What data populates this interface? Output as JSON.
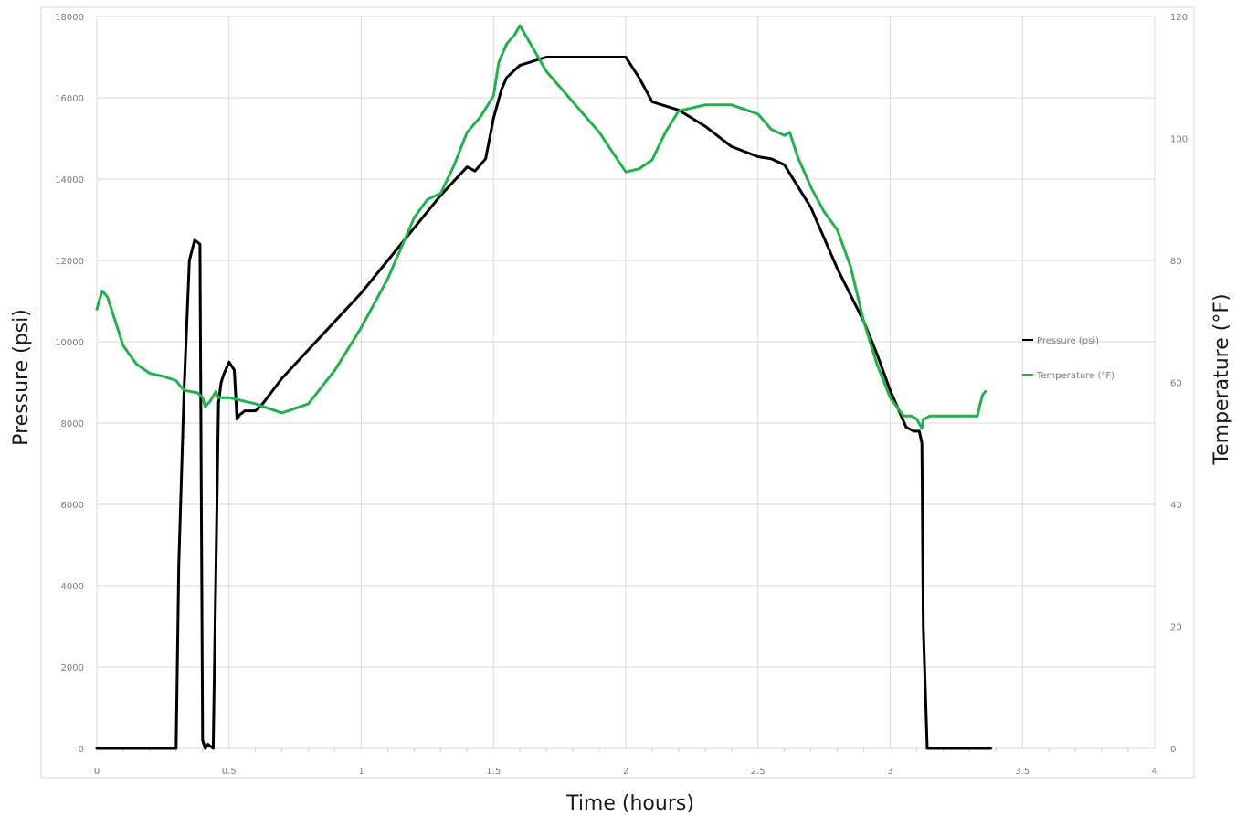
{
  "chart_data": {
    "type": "line",
    "xlabel": "Time (hours)",
    "ylabel": "Pressure (psi)",
    "y2label": "Temperature (°F)",
    "xlim": [
      0,
      4
    ],
    "ylim": [
      0,
      18000
    ],
    "y2lim": [
      0,
      120
    ],
    "x_ticks": [
      "0",
      "0.5",
      "1",
      "1.5",
      "2",
      "2.5",
      "3",
      "3.5",
      "4"
    ],
    "y_ticks": [
      "0",
      "2000",
      "4000",
      "6000",
      "8000",
      "10000",
      "12000",
      "14000",
      "16000",
      "18000"
    ],
    "y2_ticks": [
      "0",
      "20",
      "40",
      "60",
      "80",
      "100",
      "120"
    ],
    "grid": true,
    "legend_position": "right",
    "series": [
      {
        "name": "Pressure (psi)",
        "axis": "left",
        "color": "#000000",
        "x": [
          0,
          0.3,
          0.31,
          0.33,
          0.35,
          0.37,
          0.39,
          0.4,
          0.41,
          0.42,
          0.44,
          0.46,
          0.47,
          0.48,
          0.5,
          0.52,
          0.53,
          0.54,
          0.56,
          0.6,
          0.63,
          0.7,
          0.8,
          0.9,
          1.0,
          1.1,
          1.2,
          1.3,
          1.4,
          1.43,
          1.47,
          1.5,
          1.53,
          1.55,
          1.6,
          1.65,
          1.7,
          1.8,
          1.9,
          2.0,
          2.05,
          2.1,
          2.2,
          2.3,
          2.4,
          2.5,
          2.55,
          2.6,
          2.7,
          2.8,
          2.9,
          2.95,
          3.0,
          3.06,
          3.09,
          3.11,
          3.12,
          3.125,
          3.14,
          3.2,
          3.3,
          3.38
        ],
        "values": [
          0,
          0,
          4500,
          8800,
          12000,
          12500,
          12400,
          200,
          0,
          100,
          0,
          8500,
          9000,
          9200,
          9500,
          9300,
          8100,
          8200,
          8300,
          8300,
          8500,
          9100,
          9800,
          10500,
          11200,
          12000,
          12800,
          13600,
          14300,
          14200,
          14500,
          15500,
          16200,
          16500,
          16800,
          16900,
          17000,
          17000,
          17000,
          17000,
          16500,
          15900,
          15700,
          15300,
          14800,
          14550,
          14500,
          14350,
          13300,
          11800,
          10500,
          9700,
          8800,
          7900,
          7800,
          7800,
          7500,
          3000,
          0,
          0,
          0,
          0
        ]
      },
      {
        "name": "Temperature (°F)",
        "axis": "right",
        "color": "#22b14c",
        "x": [
          0,
          0.02,
          0.04,
          0.07,
          0.1,
          0.15,
          0.2,
          0.25,
          0.3,
          0.31,
          0.33,
          0.38,
          0.4,
          0.41,
          0.43,
          0.45,
          0.46,
          0.48,
          0.5,
          0.6,
          0.7,
          0.8,
          0.9,
          1.0,
          1.1,
          1.15,
          1.2,
          1.25,
          1.3,
          1.35,
          1.4,
          1.45,
          1.5,
          1.52,
          1.55,
          1.58,
          1.6,
          1.62,
          1.7,
          1.8,
          1.9,
          2.0,
          2.05,
          2.1,
          2.15,
          2.2,
          2.3,
          2.4,
          2.5,
          2.55,
          2.6,
          2.62,
          2.65,
          2.7,
          2.75,
          2.8,
          2.85,
          2.9,
          2.95,
          3.0,
          3.05,
          3.08,
          3.1,
          3.12,
          3.125,
          3.13,
          3.15,
          3.2,
          3.3,
          3.33,
          3.34,
          3.35,
          3.36
        ],
        "values": [
          72,
          75,
          74,
          70,
          66,
          63,
          61.5,
          61,
          60.3,
          59.7,
          58.7,
          58.3,
          57.5,
          56,
          57,
          58.5,
          57.5,
          57.5,
          57.5,
          56.5,
          55,
          56.5,
          62,
          69,
          77,
          82,
          87,
          90,
          91,
          95.5,
          101,
          103.5,
          107,
          112.5,
          115.5,
          117,
          118.5,
          117,
          111,
          106,
          101,
          94.5,
          95,
          96.5,
          101,
          104.5,
          105.5,
          105.5,
          104,
          101.5,
          100.5,
          101,
          97,
          92,
          88,
          85,
          79,
          70,
          63,
          57.5,
          54.5,
          54.5,
          54,
          52.5,
          54,
          54,
          54.5,
          54.5,
          54.5,
          54.5,
          56.5,
          58,
          58.5
        ]
      }
    ]
  }
}
